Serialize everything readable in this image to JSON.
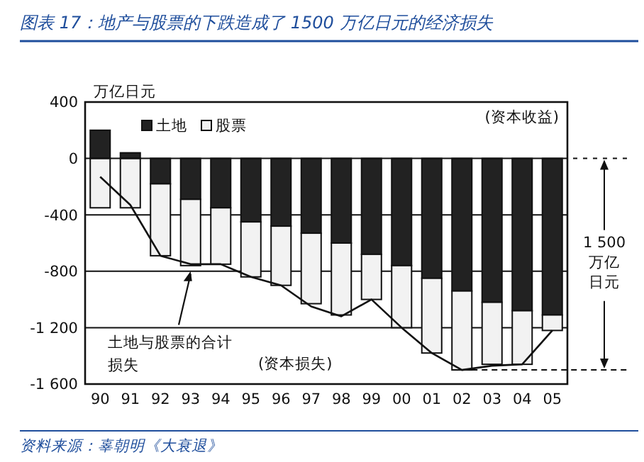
{
  "chart_data": {
    "type": "bar",
    "title": "图表 17：地产与股票的下跌造成了 1500 万亿日元的经济损失",
    "ylabel": "万亿日元",
    "categories": [
      "90",
      "91",
      "92",
      "93",
      "94",
      "95",
      "96",
      "97",
      "98",
      "99",
      "00",
      "01",
      "02",
      "03",
      "04",
      "05"
    ],
    "stacked": true,
    "series": [
      {
        "name": "土地",
        "color": "#222222",
        "values": [
          200,
          40,
          -180,
          -290,
          -350,
          -450,
          -480,
          -530,
          -600,
          -680,
          -760,
          -850,
          -940,
          -1020,
          -1080,
          -1110
        ]
      },
      {
        "name": "股票",
        "color": "#f2f2f2",
        "values": [
          -350,
          -350,
          -510,
          -470,
          -400,
          -390,
          -420,
          -500,
          -510,
          -320,
          -440,
          -530,
          -560,
          -440,
          -380,
          -110
        ]
      },
      {
        "type": "line",
        "color": "#111111",
        "values": [
          -130,
          -330,
          -690,
          -750,
          -750,
          -840,
          -900,
          -1050,
          -1120,
          -1000,
          -1200,
          -1380,
          -1500,
          -1470,
          -1460,
          -1220
        ]
      }
    ],
    "ylim": [
      -1600,
      400
    ],
    "yticks": [
      {
        "value": -1600,
        "label": "-1 600"
      },
      {
        "value": -1200,
        "label": "-1 200"
      },
      -800,
      -400,
      0,
      400
    ],
    "grid": "y",
    "legend": "top left",
    "marker": "none",
    "ref_lines": [
      {
        "axis": "y",
        "value": 0,
        "line_style": "dashed"
      },
      {
        "axis": "y",
        "value": -1500,
        "line_style": "dashed"
      }
    ],
    "annotations": [
      "(资本收益)",
      "(资本损失)",
      "1 500万亿日元",
      "资料来源：辜朝明《大衰退》",
      {
        "text": "土地与股票的合计损失",
        "x": "93",
        "y": -800
      }
    ]
  }
}
